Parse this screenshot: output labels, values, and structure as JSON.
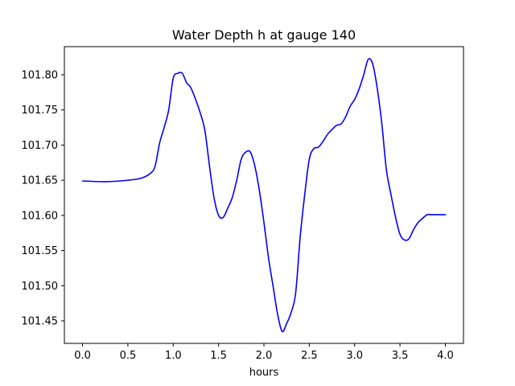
{
  "chart_data": {
    "type": "line",
    "title": "Water Depth h at gauge 140",
    "xlabel": "hours",
    "ylabel": "",
    "xlim": [
      -0.2,
      4.2
    ],
    "ylim": [
      101.418,
      101.84
    ],
    "xticks": [
      0.0,
      0.5,
      1.0,
      1.5,
      2.0,
      2.5,
      3.0,
      3.5,
      4.0
    ],
    "xtick_labels": [
      "0.0",
      "0.5",
      "1.0",
      "1.5",
      "2.0",
      "2.5",
      "3.0",
      "3.5",
      "4.0"
    ],
    "yticks": [
      101.45,
      101.5,
      101.55,
      101.6,
      101.65,
      101.7,
      101.75,
      101.8
    ],
    "ytick_labels": [
      "101.45",
      "101.50",
      "101.55",
      "101.60",
      "101.65",
      "101.70",
      "101.75",
      "101.80"
    ],
    "grid": false,
    "series": [
      {
        "color": "#0000ff",
        "x": [
          0.0,
          0.25,
          0.5,
          0.65,
          0.75,
          0.8,
          0.85,
          0.9,
          0.95,
          1.0,
          1.05,
          1.1,
          1.15,
          1.2,
          1.3,
          1.35,
          1.4,
          1.45,
          1.5,
          1.55,
          1.6,
          1.65,
          1.7,
          1.75,
          1.8,
          1.85,
          1.9,
          1.95,
          2.0,
          2.05,
          2.1,
          2.15,
          2.2,
          2.25,
          2.3,
          2.35,
          2.4,
          2.45,
          2.5,
          2.55,
          2.6,
          2.65,
          2.7,
          2.75,
          2.8,
          2.85,
          2.9,
          2.95,
          3.0,
          3.05,
          3.1,
          3.15,
          3.2,
          3.25,
          3.3,
          3.35,
          3.4,
          3.45,
          3.5,
          3.55,
          3.6,
          3.65,
          3.7,
          3.75,
          3.8,
          3.85,
          3.9,
          3.95,
          4.0
        ],
        "y": [
          101.649,
          101.648,
          101.65,
          101.653,
          101.66,
          101.67,
          101.703,
          101.725,
          101.75,
          101.795,
          101.802,
          101.802,
          101.788,
          101.78,
          101.745,
          101.72,
          101.67,
          101.625,
          101.6,
          101.597,
          101.61,
          101.625,
          101.65,
          101.68,
          101.69,
          101.69,
          101.67,
          101.635,
          101.59,
          101.54,
          101.5,
          101.46,
          101.435,
          101.446,
          101.462,
          101.49,
          101.57,
          101.63,
          101.68,
          101.695,
          101.697,
          101.705,
          101.715,
          101.722,
          101.728,
          101.73,
          101.74,
          101.755,
          101.765,
          101.78,
          101.8,
          101.822,
          101.815,
          101.78,
          101.73,
          101.665,
          101.63,
          101.598,
          101.573,
          101.565,
          101.567,
          101.58,
          101.59,
          101.596,
          101.601,
          101.601,
          101.601,
          101.601,
          101.601
        ]
      }
    ]
  }
}
